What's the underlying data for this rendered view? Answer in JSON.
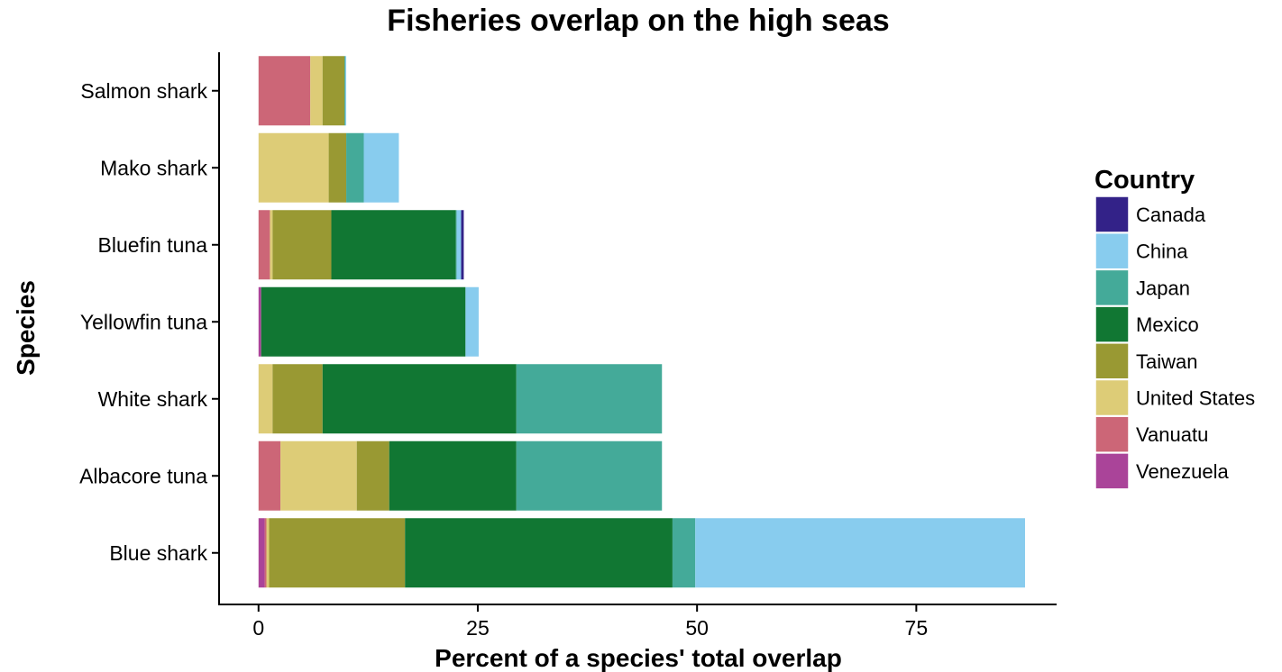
{
  "chart_data": {
    "type": "bar",
    "orientation": "horizontal",
    "stacked": true,
    "title": "Fisheries overlap on the high seas",
    "xlabel": "Percent of a species' total overlap",
    "ylabel": "Species",
    "xlim": [
      -4.5,
      91
    ],
    "x_ticks": [
      0,
      25,
      50,
      75
    ],
    "grid": false,
    "legend": {
      "title": "Country",
      "placement": "right"
    },
    "categories": [
      "Salmon shark",
      "Mako shark",
      "Bluefin tuna",
      "Yellowfin tuna",
      "White shark",
      "Albacore tuna",
      "Blue shark"
    ],
    "stack_order": [
      "Venezuela",
      "Vanuatu",
      "United States",
      "Taiwan",
      "Mexico",
      "Japan",
      "China",
      "Canada"
    ],
    "series": [
      {
        "name": "Canada",
        "color": "#332288",
        "values": [
          0,
          0,
          0.3,
          0,
          0,
          0,
          0
        ]
      },
      {
        "name": "China",
        "color": "#88CCEE",
        "values": [
          0.1,
          4.0,
          0.5,
          1.5,
          0,
          0,
          37.6
        ]
      },
      {
        "name": "Japan",
        "color": "#44AA99",
        "values": [
          0.1,
          2.0,
          0.1,
          0,
          16.6,
          16.6,
          2.6
        ]
      },
      {
        "name": "Mexico",
        "color": "#117733",
        "values": [
          0,
          0,
          14.2,
          23.3,
          22.1,
          14.5,
          30.5
        ]
      },
      {
        "name": "Taiwan",
        "color": "#999933",
        "values": [
          2.5,
          2.0,
          6.7,
          0,
          5.7,
          3.7,
          15.5
        ]
      },
      {
        "name": "United States",
        "color": "#DDCC77",
        "values": [
          1.4,
          8.0,
          0.3,
          0,
          1.6,
          8.7,
          0.3
        ]
      },
      {
        "name": "Vanuatu",
        "color": "#CC6677",
        "values": [
          5.9,
          0,
          1.3,
          0,
          0,
          2.5,
          0.2
        ]
      },
      {
        "name": "Venezuela",
        "color": "#AA4499",
        "values": [
          0,
          0,
          0,
          0.3,
          0,
          0,
          0.7
        ]
      }
    ]
  }
}
